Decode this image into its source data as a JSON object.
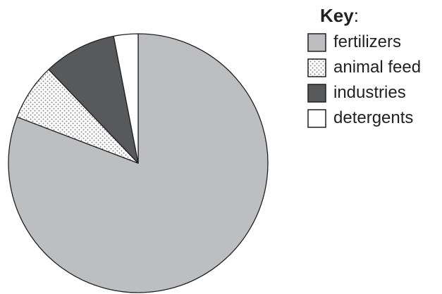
{
  "chart_data": {
    "type": "pie",
    "legend_title": "Key",
    "legend_placement": "top-right",
    "start_angle_deg": 0,
    "direction": "clockwise",
    "slices": [
      {
        "label": "fertilizers",
        "value": 80,
        "fill": "#bcbec0",
        "pattern": "solid"
      },
      {
        "label": "animal feed",
        "value": 7,
        "fill": "#ffffff",
        "pattern": "dots"
      },
      {
        "label": "industries",
        "value": 9,
        "fill": "#58595b",
        "pattern": "solid"
      },
      {
        "label": "detergents",
        "value": 3,
        "fill": "#ffffff",
        "pattern": "solid"
      }
    ],
    "outline_color": "#231f20"
  }
}
